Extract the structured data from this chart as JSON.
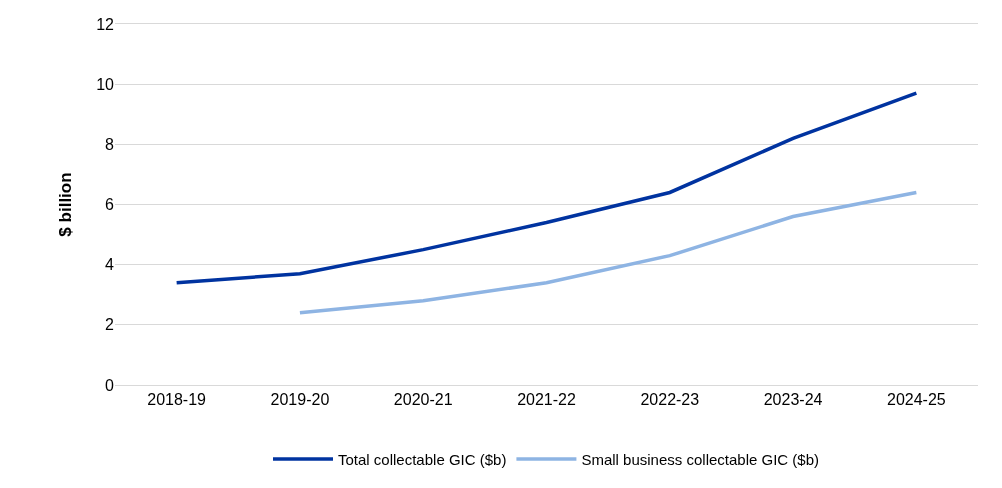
{
  "chart_data": {
    "type": "line",
    "ylabel": "$ billion",
    "categories": [
      "2018-19",
      "2019-20",
      "2020-21",
      "2021-22",
      "2022-23",
      "2023-24",
      "2024-25"
    ],
    "series": [
      {
        "name": "Total collectable GIC ($b)",
        "color": "#0033a0",
        "values": [
          3.4,
          3.7,
          4.5,
          5.4,
          6.4,
          8.2,
          9.7
        ]
      },
      {
        "name": "Small business collectable GIC ($b)",
        "color": "#8eb4e3",
        "values": [
          null,
          2.4,
          2.8,
          3.4,
          4.3,
          5.6,
          6.4
        ]
      }
    ],
    "ylim": [
      0,
      12
    ],
    "yticks": [
      0,
      2,
      4,
      6,
      8,
      10,
      12
    ],
    "grid": "y",
    "legend": "bottom",
    "marker": "none",
    "line_style": "solid"
  }
}
